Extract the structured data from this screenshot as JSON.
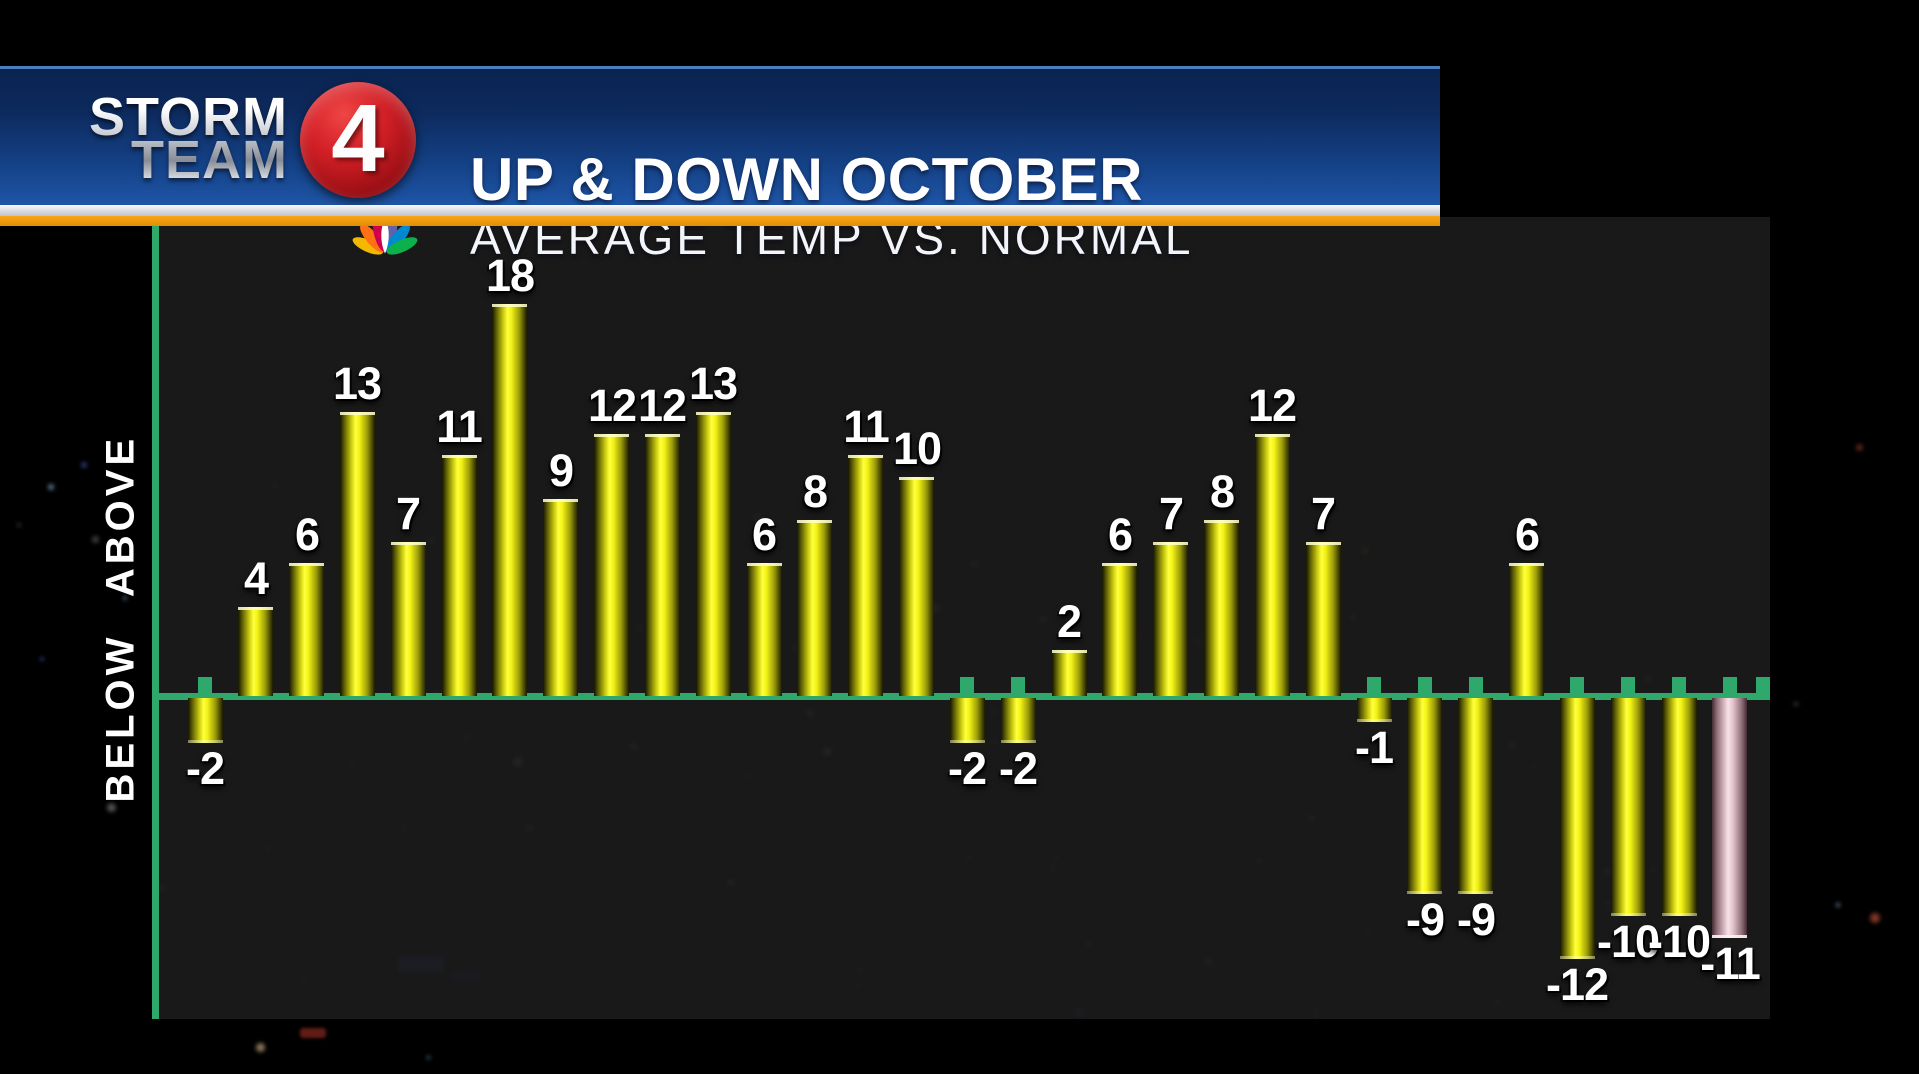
{
  "header": {
    "logo_line1": "STORM",
    "logo_line2": "TEAM",
    "logo_number": "4",
    "title": "UP & DOWN OCTOBER",
    "subtitle": "AVERAGE TEMP VS. NORMAL"
  },
  "axis": {
    "above": "ABOVE",
    "below": "BELOW"
  },
  "chart_data": {
    "type": "bar",
    "title": "UP & DOWN OCTOBER",
    "subtitle": "AVERAGE TEMP VS. NORMAL",
    "ylabel_positive": "ABOVE",
    "ylabel_negative": "BELOW",
    "xlabel": "",
    "categories_note": "31 unlabeled bars, days of October in order",
    "values": [
      -2,
      4,
      6,
      13,
      7,
      11,
      18,
      9,
      12,
      12,
      13,
      6,
      8,
      11,
      10,
      -2,
      -2,
      2,
      6,
      7,
      8,
      12,
      7,
      -1,
      -9,
      -9,
      6,
      -12,
      -10,
      -10,
      -11
    ],
    "baseline": 0,
    "ylim": [
      -12,
      18
    ],
    "grid": false,
    "legend": false,
    "highlighted_bar_index": 30,
    "colors": {
      "bar": "#f2f216",
      "highlighted_bar": "#ecd2da",
      "axis": "#2fa96b",
      "value_label": "#ffffff",
      "banner_blue": "#123a7e",
      "banner_orange": "#ef9b10",
      "logo_red": "#c41a20"
    }
  }
}
